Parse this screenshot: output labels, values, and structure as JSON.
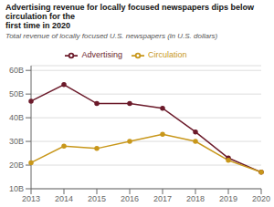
{
  "chart_data": {
    "type": "line",
    "title": "Advertising revenue for locally focused newspapers dips below circulation for the\nfirst time in 2020",
    "subtitle": "Total revenue of locally focused U.S. newspapers (in U.S. dollars)",
    "categories": [
      "2013",
      "2014",
      "2015",
      "2016",
      "2017",
      "2018",
      "2019",
      "2020"
    ],
    "series": [
      {
        "name": "Advertising",
        "color": "#6b1a2a",
        "marker": "circle",
        "values": [
          47,
          54,
          46,
          46,
          44,
          34,
          23,
          17
        ]
      },
      {
        "name": "Circulation",
        "color": "#c8971a",
        "marker": "circle",
        "values": [
          21,
          28,
          27,
          30,
          33,
          30,
          22,
          17
        ]
      }
    ],
    "ylim": [
      10,
      62
    ],
    "yticks": [
      {
        "value": 10,
        "label": "10B"
      },
      {
        "value": 20,
        "label": "20B"
      },
      {
        "value": 30,
        "label": "30B"
      },
      {
        "value": 40,
        "label": "40B"
      },
      {
        "value": 50,
        "label": "50B"
      },
      {
        "value": 60,
        "label": "60B"
      }
    ],
    "grid": true,
    "legend": "top"
  }
}
